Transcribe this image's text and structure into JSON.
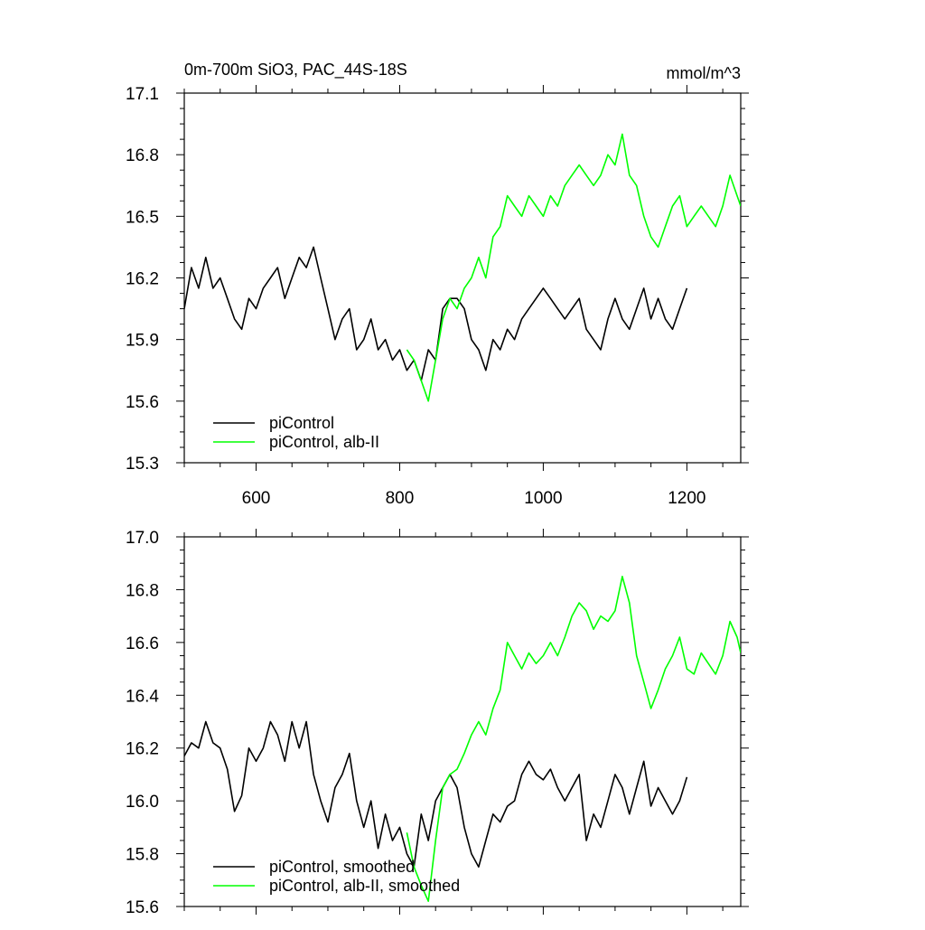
{
  "chart_data": [
    {
      "type": "line",
      "title": "0m-700m SiO3, PAC_44S-18S",
      "units": "mmol/m^3",
      "xlim": [
        500,
        1275
      ],
      "ylim": [
        15.3,
        17.1
      ],
      "x_ticks": [
        600,
        800,
        1000,
        1200
      ],
      "y_ticks": [
        15.3,
        15.6,
        15.9,
        16.2,
        16.5,
        16.8,
        17.1
      ],
      "y_tick_labels": [
        "15.3",
        "15.6",
        "15.9",
        "16.2",
        "16.5",
        "16.8",
        "17.1"
      ],
      "legend_position": "bottom-left",
      "series": [
        {
          "name": "piControl",
          "color": "#000000",
          "x": [
            500,
            510,
            520,
            530,
            540,
            550,
            560,
            570,
            580,
            590,
            600,
            610,
            620,
            630,
            640,
            650,
            660,
            670,
            680,
            690,
            700,
            710,
            720,
            730,
            740,
            750,
            760,
            770,
            780,
            790,
            800,
            810,
            820,
            830,
            840,
            850,
            860,
            870,
            880,
            890,
            900,
            910,
            920,
            930,
            940,
            950,
            960,
            970,
            980,
            990,
            1000,
            1010,
            1020,
            1030,
            1040,
            1050,
            1060,
            1070,
            1080,
            1090,
            1100,
            1110,
            1120,
            1130,
            1140,
            1150,
            1160,
            1170,
            1180,
            1190,
            1200
          ],
          "values": [
            16.05,
            16.25,
            16.15,
            16.3,
            16.15,
            16.2,
            16.1,
            16.0,
            15.95,
            16.1,
            16.05,
            16.15,
            16.2,
            16.25,
            16.1,
            16.2,
            16.3,
            16.25,
            16.35,
            16.2,
            16.05,
            15.9,
            16.0,
            16.05,
            15.85,
            15.9,
            16.0,
            15.85,
            15.9,
            15.8,
            15.85,
            15.75,
            15.8,
            15.7,
            15.85,
            15.8,
            16.05,
            16.1,
            16.1,
            16.05,
            15.9,
            15.85,
            15.75,
            15.9,
            15.85,
            15.95,
            15.9,
            16.0,
            16.05,
            16.1,
            16.15,
            16.1,
            16.05,
            16.0,
            16.05,
            16.1,
            15.95,
            15.9,
            15.85,
            16.0,
            16.1,
            16.0,
            15.95,
            16.05,
            16.15,
            16.0,
            16.1,
            16.0,
            15.95,
            16.05,
            16.15
          ]
        },
        {
          "name": "piControl, alb-II",
          "color": "#00ff00",
          "x": [
            810,
            820,
            830,
            840,
            850,
            860,
            870,
            880,
            890,
            900,
            910,
            920,
            930,
            940,
            950,
            960,
            970,
            980,
            990,
            1000,
            1010,
            1020,
            1030,
            1040,
            1050,
            1060,
            1070,
            1080,
            1090,
            1100,
            1110,
            1120,
            1130,
            1140,
            1150,
            1160,
            1170,
            1180,
            1190,
            1200,
            1210,
            1220,
            1230,
            1240,
            1250,
            1260,
            1270,
            1275
          ],
          "values": [
            15.85,
            15.8,
            15.7,
            15.6,
            15.8,
            16.0,
            16.1,
            16.05,
            16.15,
            16.2,
            16.3,
            16.2,
            16.4,
            16.45,
            16.6,
            16.55,
            16.5,
            16.6,
            16.55,
            16.5,
            16.6,
            16.55,
            16.65,
            16.7,
            16.75,
            16.7,
            16.65,
            16.7,
            16.8,
            16.75,
            16.9,
            16.7,
            16.65,
            16.5,
            16.4,
            16.35,
            16.45,
            16.55,
            16.6,
            16.45,
            16.5,
            16.55,
            16.5,
            16.45,
            16.55,
            16.7,
            16.6,
            16.55
          ]
        }
      ]
    },
    {
      "type": "line",
      "title": "",
      "xlim": [
        500,
        1275
      ],
      "ylim": [
        15.6,
        17.0
      ],
      "x_ticks": [
        600,
        800,
        1000,
        1200
      ],
      "y_ticks": [
        15.6,
        15.8,
        16.0,
        16.2,
        16.4,
        16.6,
        16.8,
        17.0
      ],
      "y_tick_labels": [
        "15.6",
        "15.8",
        "16.0",
        "16.2",
        "16.4",
        "16.6",
        "16.8",
        "17.0"
      ],
      "legend_position": "bottom-left",
      "series": [
        {
          "name": "piControl, smoothed",
          "color": "#000000",
          "x": [
            500,
            510,
            520,
            530,
            540,
            550,
            560,
            570,
            580,
            590,
            600,
            610,
            620,
            630,
            640,
            650,
            660,
            670,
            680,
            690,
            700,
            710,
            720,
            730,
            740,
            750,
            760,
            770,
            780,
            790,
            800,
            810,
            820,
            830,
            840,
            850,
            860,
            870,
            880,
            890,
            900,
            910,
            920,
            930,
            940,
            950,
            960,
            970,
            980,
            990,
            1000,
            1010,
            1020,
            1030,
            1040,
            1050,
            1060,
            1070,
            1080,
            1090,
            1100,
            1110,
            1120,
            1130,
            1140,
            1150,
            1160,
            1170,
            1180,
            1190,
            1200
          ],
          "values": [
            16.17,
            16.22,
            16.2,
            16.3,
            16.22,
            16.2,
            16.12,
            15.96,
            16.02,
            16.2,
            16.15,
            16.2,
            16.3,
            16.25,
            16.15,
            16.3,
            16.2,
            16.3,
            16.1,
            16.0,
            15.92,
            16.05,
            16.1,
            16.18,
            16.0,
            15.9,
            16.0,
            15.82,
            15.95,
            15.85,
            15.9,
            15.8,
            15.75,
            15.95,
            15.85,
            16.0,
            16.05,
            16.1,
            16.05,
            15.9,
            15.8,
            15.75,
            15.85,
            15.95,
            15.92,
            15.98,
            16.0,
            16.1,
            16.15,
            16.1,
            16.08,
            16.12,
            16.05,
            16.0,
            16.05,
            16.1,
            15.85,
            15.95,
            15.9,
            16.0,
            16.1,
            16.05,
            15.95,
            16.05,
            16.15,
            15.98,
            16.05,
            16.0,
            15.95,
            16.0,
            16.09
          ]
        },
        {
          "name": "piControl, alb-II, smoothed",
          "color": "#00ff00",
          "x": [
            810,
            820,
            830,
            840,
            850,
            860,
            870,
            880,
            890,
            900,
            910,
            920,
            930,
            940,
            950,
            960,
            970,
            980,
            990,
            1000,
            1010,
            1020,
            1030,
            1040,
            1050,
            1060,
            1070,
            1080,
            1090,
            1100,
            1110,
            1120,
            1130,
            1140,
            1150,
            1160,
            1170,
            1180,
            1190,
            1200,
            1210,
            1220,
            1230,
            1240,
            1250,
            1260,
            1270,
            1275
          ],
          "values": [
            15.88,
            15.75,
            15.68,
            15.62,
            15.85,
            16.05,
            16.1,
            16.12,
            16.18,
            16.25,
            16.3,
            16.25,
            16.35,
            16.42,
            16.6,
            16.55,
            16.5,
            16.56,
            16.52,
            16.55,
            16.6,
            16.55,
            16.62,
            16.7,
            16.75,
            16.72,
            16.65,
            16.7,
            16.68,
            16.72,
            16.85,
            16.75,
            16.55,
            16.45,
            16.35,
            16.42,
            16.5,
            16.55,
            16.62,
            16.5,
            16.48,
            16.56,
            16.52,
            16.48,
            16.55,
            16.68,
            16.62,
            16.56
          ]
        }
      ]
    }
  ]
}
